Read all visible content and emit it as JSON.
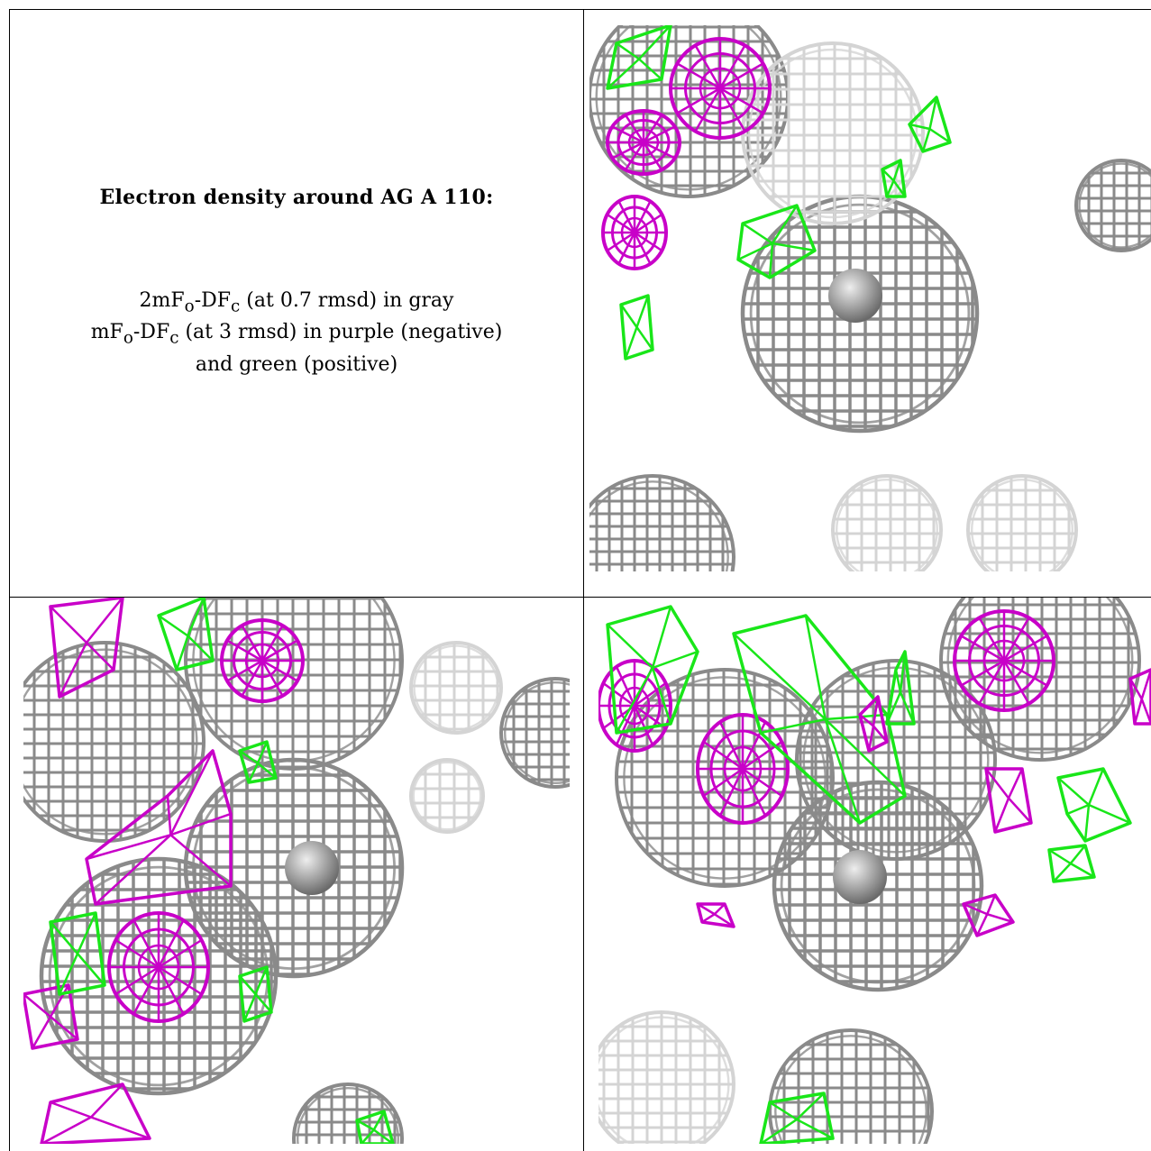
{
  "caption": {
    "title": "Electron density around AG A 110:",
    "line1": "2mF",
    "line1_sub_o": "o",
    "line1_mid": "-DF",
    "line1_sub_c": "c",
    "line1_tail": " (at 0.7 rmsd) in gray",
    "line2": "mF",
    "line2_sub_o": "o",
    "line2_mid": "-DF",
    "line2_sub_c": "c",
    "line2_tail": " (at 3 rmsd) in purple (negative)",
    "line3": "and green (positive)"
  },
  "colors": {
    "gray_mesh": "#8a8a8a",
    "light_mesh": "#d4d4d4",
    "negative": "#c800c8",
    "positive": "#19e619"
  },
  "panels": [
    {
      "name": "view-1"
    },
    {
      "name": "view-2"
    },
    {
      "name": "view-3"
    }
  ]
}
